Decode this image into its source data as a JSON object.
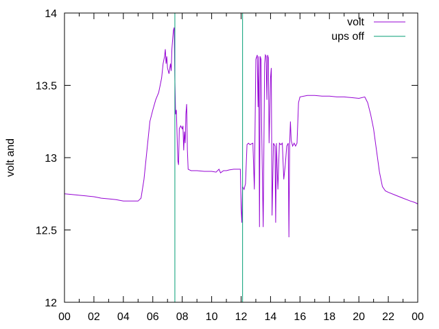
{
  "chart_data": {
    "type": "line",
    "ylabel": "volt and",
    "xlim": [
      0,
      24
    ],
    "ylim": [
      12,
      14
    ],
    "x_ticks": [
      "00",
      "02",
      "04",
      "06",
      "08",
      "10",
      "12",
      "14",
      "16",
      "18",
      "20",
      "22",
      "00"
    ],
    "y_ticks": [
      "12",
      "12.5",
      "13",
      "13.5",
      "14"
    ],
    "legend_position": "top-right",
    "grid": false,
    "series": [
      {
        "name": "volt",
        "color": "#9400d3",
        "points": [
          [
            0.0,
            12.75
          ],
          [
            0.5,
            12.745
          ],
          [
            1.0,
            12.74
          ],
          [
            1.5,
            12.735
          ],
          [
            2.0,
            12.73
          ],
          [
            2.5,
            12.72
          ],
          [
            3.0,
            12.715
          ],
          [
            3.5,
            12.71
          ],
          [
            4.0,
            12.7
          ],
          [
            4.5,
            12.7
          ],
          [
            5.0,
            12.7
          ],
          [
            5.2,
            12.72
          ],
          [
            5.4,
            12.85
          ],
          [
            5.6,
            13.05
          ],
          [
            5.8,
            13.25
          ],
          [
            6.0,
            13.33
          ],
          [
            6.2,
            13.4
          ],
          [
            6.4,
            13.45
          ],
          [
            6.5,
            13.5
          ],
          [
            6.6,
            13.55
          ],
          [
            6.7,
            13.65
          ],
          [
            6.8,
            13.7
          ],
          [
            6.85,
            13.75
          ],
          [
            6.9,
            13.65
          ],
          [
            6.95,
            13.7
          ],
          [
            7.0,
            13.62
          ],
          [
            7.1,
            13.58
          ],
          [
            7.2,
            13.65
          ],
          [
            7.25,
            13.6
          ],
          [
            7.3,
            13.75
          ],
          [
            7.35,
            13.82
          ],
          [
            7.4,
            13.88
          ],
          [
            7.45,
            13.9
          ],
          [
            7.5,
            13.55
          ],
          [
            7.55,
            13.3
          ],
          [
            7.6,
            13.33
          ],
          [
            7.7,
            12.98
          ],
          [
            7.75,
            12.95
          ],
          [
            7.8,
            13.2
          ],
          [
            7.9,
            13.22
          ],
          [
            8.0,
            13.2
          ],
          [
            8.05,
            13.22
          ],
          [
            8.1,
            13.05
          ],
          [
            8.15,
            13.18
          ],
          [
            8.2,
            13.1
          ],
          [
            8.25,
            13.3
          ],
          [
            8.3,
            13.37
          ],
          [
            8.35,
            13.05
          ],
          [
            8.4,
            12.92
          ],
          [
            8.6,
            12.91
          ],
          [
            9.0,
            12.91
          ],
          [
            9.5,
            12.905
          ],
          [
            10.0,
            12.905
          ],
          [
            10.3,
            12.9
          ],
          [
            10.5,
            12.92
          ],
          [
            10.6,
            12.895
          ],
          [
            10.8,
            12.91
          ],
          [
            11.0,
            12.91
          ],
          [
            11.2,
            12.915
          ],
          [
            11.5,
            12.92
          ],
          [
            11.8,
            12.92
          ],
          [
            11.95,
            12.92
          ],
          [
            12.0,
            12.65
          ],
          [
            12.05,
            12.55
          ],
          [
            12.1,
            12.8
          ],
          [
            12.2,
            12.78
          ],
          [
            12.3,
            12.82
          ],
          [
            12.4,
            13.09
          ],
          [
            12.5,
            13.1
          ],
          [
            12.6,
            13.09
          ],
          [
            12.8,
            13.1
          ],
          [
            12.9,
            12.78
          ],
          [
            13.0,
            13.68
          ],
          [
            13.1,
            13.71
          ],
          [
            13.15,
            13.35
          ],
          [
            13.2,
            13.7
          ],
          [
            13.25,
            12.52
          ],
          [
            13.3,
            13.7
          ],
          [
            13.35,
            13.68
          ],
          [
            13.4,
            13.2
          ],
          [
            13.5,
            12.52
          ],
          [
            13.6,
            13.65
          ],
          [
            13.65,
            13.71
          ],
          [
            13.7,
            13.7
          ],
          [
            13.75,
            13.4
          ],
          [
            13.8,
            13.71
          ],
          [
            13.85,
            13.69
          ],
          [
            13.9,
            13.1
          ],
          [
            14.0,
            13.55
          ],
          [
            14.05,
            13.62
          ],
          [
            14.1,
            12.6
          ],
          [
            14.2,
            13.1
          ],
          [
            14.3,
            13.08
          ],
          [
            14.35,
            12.55
          ],
          [
            14.4,
            13.1
          ],
          [
            14.5,
            12.78
          ],
          [
            14.6,
            13.1
          ],
          [
            14.7,
            13.09
          ],
          [
            14.8,
            13.1
          ],
          [
            14.9,
            12.85
          ],
          [
            15.0,
            12.95
          ],
          [
            15.1,
            13.08
          ],
          [
            15.2,
            13.1
          ],
          [
            15.25,
            12.45
          ],
          [
            15.3,
            13.1
          ],
          [
            15.35,
            13.25
          ],
          [
            15.4,
            13.12
          ],
          [
            15.5,
            13.08
          ],
          [
            15.6,
            13.1
          ],
          [
            15.7,
            13.08
          ],
          [
            15.8,
            13.1
          ],
          [
            15.9,
            13.38
          ],
          [
            16.0,
            13.42
          ],
          [
            16.5,
            13.43
          ],
          [
            17.0,
            13.43
          ],
          [
            17.5,
            13.425
          ],
          [
            18.0,
            13.425
          ],
          [
            18.5,
            13.42
          ],
          [
            19.0,
            13.42
          ],
          [
            19.5,
            13.415
          ],
          [
            20.0,
            13.41
          ],
          [
            20.4,
            13.42
          ],
          [
            20.5,
            13.4
          ],
          [
            20.6,
            13.38
          ],
          [
            20.8,
            13.3
          ],
          [
            21.0,
            13.2
          ],
          [
            21.2,
            13.05
          ],
          [
            21.4,
            12.9
          ],
          [
            21.6,
            12.8
          ],
          [
            21.8,
            12.77
          ],
          [
            22.0,
            12.76
          ],
          [
            22.5,
            12.74
          ],
          [
            23.0,
            12.72
          ],
          [
            23.5,
            12.7
          ],
          [
            23.8,
            12.69
          ],
          [
            24.0,
            12.68
          ]
        ]
      },
      {
        "name": "ups off",
        "color": "#009e73",
        "vertical_lines": [
          7.5,
          12.1
        ]
      }
    ]
  }
}
